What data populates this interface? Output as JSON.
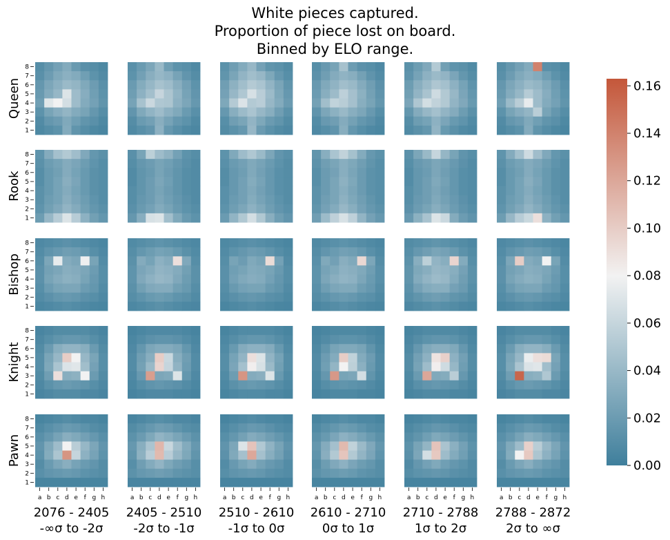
{
  "title": {
    "line1": "White pieces captured.",
    "line2": "Proportion of piece lost on board.",
    "line3": "Binned by ELO range."
  },
  "colors": {
    "low": "#3f7f9c",
    "mid": "#f2f2f2",
    "high": "#c4573a"
  },
  "chart_data": {
    "type": "heatmap",
    "rows": [
      "Queen",
      "Rook",
      "Bishop",
      "Knight",
      "Pawn"
    ],
    "columns": [
      {
        "range": "2076 - 2405",
        "sigma": "-∞σ to -2σ"
      },
      {
        "range": "2405 - 2510",
        "sigma": "-2σ to -1σ"
      },
      {
        "range": "2510 - 2610",
        "sigma": "-1σ to 0σ"
      },
      {
        "range": "2610 - 2710",
        "sigma": "0σ to 1σ"
      },
      {
        "range": "2710 - 2788",
        "sigma": "1σ to 2σ"
      },
      {
        "range": "2788 - 2872",
        "sigma": "2σ to ∞σ"
      }
    ],
    "files": [
      "a",
      "b",
      "c",
      "d",
      "e",
      "f",
      "g",
      "h"
    ],
    "ranks": [
      "8",
      "7",
      "6",
      "5",
      "4",
      "3",
      "2",
      "1"
    ],
    "colorbar": {
      "min": 0.0,
      "max": 0.163,
      "ticks": [
        "0.00",
        "0.02",
        "0.04",
        "0.06",
        "0.08",
        "0.10",
        "0.12",
        "0.14",
        "0.16"
      ]
    },
    "base_patterns": {
      "Queen": [
        [
          0.012,
          0.02,
          0.028,
          0.036,
          0.022,
          0.014,
          0.012,
          0.008
        ],
        [
          0.014,
          0.024,
          0.034,
          0.04,
          0.036,
          0.026,
          0.016,
          0.01
        ],
        [
          0.02,
          0.032,
          0.04,
          0.048,
          0.044,
          0.034,
          0.024,
          0.014
        ],
        [
          0.022,
          0.036,
          0.046,
          0.062,
          0.05,
          0.038,
          0.026,
          0.016
        ],
        [
          0.026,
          0.048,
          0.064,
          0.06,
          0.05,
          0.036,
          0.028,
          0.018
        ],
        [
          0.016,
          0.03,
          0.038,
          0.044,
          0.036,
          0.03,
          0.02,
          0.012
        ],
        [
          0.01,
          0.02,
          0.024,
          0.034,
          0.026,
          0.018,
          0.014,
          0.008
        ],
        [
          0.008,
          0.012,
          0.016,
          0.036,
          0.018,
          0.012,
          0.008,
          0.006
        ]
      ],
      "Rook": [
        [
          0.014,
          0.03,
          0.044,
          0.05,
          0.042,
          0.028,
          0.016,
          0.012
        ],
        [
          0.012,
          0.02,
          0.024,
          0.03,
          0.026,
          0.02,
          0.014,
          0.01
        ],
        [
          0.01,
          0.018,
          0.022,
          0.03,
          0.024,
          0.018,
          0.012,
          0.01
        ],
        [
          0.01,
          0.018,
          0.024,
          0.032,
          0.026,
          0.018,
          0.012,
          0.01
        ],
        [
          0.012,
          0.018,
          0.024,
          0.03,
          0.024,
          0.018,
          0.012,
          0.01
        ],
        [
          0.012,
          0.02,
          0.024,
          0.032,
          0.026,
          0.02,
          0.014,
          0.01
        ],
        [
          0.014,
          0.022,
          0.028,
          0.036,
          0.03,
          0.022,
          0.016,
          0.012
        ],
        [
          0.02,
          0.038,
          0.052,
          0.06,
          0.052,
          0.034,
          0.022,
          0.016
        ]
      ],
      "Bishop": [
        [
          0.008,
          0.01,
          0.012,
          0.014,
          0.012,
          0.01,
          0.008,
          0.006
        ],
        [
          0.01,
          0.016,
          0.02,
          0.024,
          0.022,
          0.018,
          0.012,
          0.008
        ],
        [
          0.012,
          0.03,
          0.024,
          0.034,
          0.03,
          0.026,
          0.028,
          0.01
        ],
        [
          0.014,
          0.026,
          0.03,
          0.036,
          0.034,
          0.03,
          0.022,
          0.012
        ],
        [
          0.014,
          0.028,
          0.034,
          0.038,
          0.036,
          0.028,
          0.02,
          0.012
        ],
        [
          0.012,
          0.022,
          0.028,
          0.03,
          0.03,
          0.022,
          0.018,
          0.01
        ],
        [
          0.01,
          0.014,
          0.018,
          0.02,
          0.018,
          0.014,
          0.012,
          0.008
        ],
        [
          0.006,
          0.008,
          0.01,
          0.012,
          0.01,
          0.008,
          0.006,
          0.005
        ]
      ],
      "Knight": [
        [
          0.004,
          0.006,
          0.008,
          0.008,
          0.008,
          0.008,
          0.006,
          0.004
        ],
        [
          0.006,
          0.01,
          0.014,
          0.016,
          0.016,
          0.014,
          0.01,
          0.006
        ],
        [
          0.008,
          0.018,
          0.03,
          0.034,
          0.034,
          0.03,
          0.018,
          0.008
        ],
        [
          0.01,
          0.024,
          0.036,
          0.07,
          0.068,
          0.036,
          0.024,
          0.01
        ],
        [
          0.01,
          0.026,
          0.044,
          0.064,
          0.066,
          0.04,
          0.022,
          0.01
        ],
        [
          0.008,
          0.02,
          0.06,
          0.03,
          0.032,
          0.056,
          0.018,
          0.008
        ],
        [
          0.006,
          0.012,
          0.016,
          0.018,
          0.016,
          0.014,
          0.01,
          0.006
        ],
        [
          0.004,
          0.006,
          0.008,
          0.008,
          0.008,
          0.006,
          0.006,
          0.004
        ]
      ],
      "Pawn": [
        [
          0.004,
          0.006,
          0.008,
          0.01,
          0.008,
          0.006,
          0.006,
          0.004
        ],
        [
          0.008,
          0.012,
          0.016,
          0.02,
          0.018,
          0.014,
          0.01,
          0.008
        ],
        [
          0.012,
          0.018,
          0.026,
          0.034,
          0.03,
          0.024,
          0.018,
          0.012
        ],
        [
          0.016,
          0.03,
          0.044,
          0.08,
          0.056,
          0.04,
          0.028,
          0.016
        ],
        [
          0.014,
          0.032,
          0.05,
          0.11,
          0.05,
          0.036,
          0.026,
          0.014
        ],
        [
          0.01,
          0.02,
          0.028,
          0.034,
          0.026,
          0.02,
          0.016,
          0.01
        ],
        [
          0.012,
          0.016,
          0.018,
          0.02,
          0.018,
          0.014,
          0.012,
          0.01
        ],
        [
          0.004,
          0.004,
          0.004,
          0.004,
          0.004,
          0.004,
          0.004,
          0.004
        ]
      ]
    },
    "highlights": {
      "Queen": [
        [
          {
            "r": 3,
            "c": 3,
            "v": 0.07
          },
          {
            "r": 4,
            "c": 1,
            "v": 0.072
          },
          {
            "r": 4,
            "c": 2,
            "v": 0.08
          },
          {
            "r": 4,
            "c": 3,
            "v": 0.066
          }
        ],
        [
          {
            "r": 0,
            "c": 3,
            "v": 0.04
          },
          {
            "r": 4,
            "c": 3,
            "v": 0.05
          }
        ],
        [
          {
            "r": 4,
            "c": 3,
            "v": 0.052
          }
        ],
        [
          {
            "r": 0,
            "c": 3,
            "v": 0.046
          },
          {
            "r": 4,
            "c": 3,
            "v": 0.054
          }
        ],
        [
          {
            "r": 0,
            "c": 3,
            "v": 0.052
          },
          {
            "r": 4,
            "c": 3,
            "v": 0.058
          }
        ],
        [
          {
            "r": 0,
            "c": 4,
            "v": 0.14
          },
          {
            "r": 4,
            "c": 3,
            "v": 0.075
          },
          {
            "r": 5,
            "c": 4,
            "v": 0.055
          }
        ]
      ],
      "Rook": [
        [
          {
            "r": 7,
            "c": 3,
            "v": 0.07
          }
        ],
        [
          {
            "r": 0,
            "c": 2,
            "v": 0.056
          },
          {
            "r": 7,
            "c": 2,
            "v": 0.068
          },
          {
            "r": 7,
            "c": 3,
            "v": 0.07
          }
        ],
        [
          {
            "r": 0,
            "c": 3,
            "v": 0.05
          },
          {
            "r": 7,
            "c": 3,
            "v": 0.066
          }
        ],
        [
          {
            "r": 0,
            "c": 3,
            "v": 0.058
          },
          {
            "r": 7,
            "c": 3,
            "v": 0.068
          }
        ],
        [
          {
            "r": 0,
            "c": 3,
            "v": 0.06
          },
          {
            "r": 7,
            "c": 3,
            "v": 0.07
          },
          {
            "r": 7,
            "c": 4,
            "v": 0.062
          }
        ],
        [
          {
            "r": 0,
            "c": 3,
            "v": 0.064
          },
          {
            "r": 7,
            "c": 4,
            "v": 0.09
          }
        ]
      ],
      "Bishop": [
        [
          {
            "r": 2,
            "c": 2,
            "v": 0.075
          },
          {
            "r": 2,
            "c": 5,
            "v": 0.078
          }
        ],
        [
          {
            "r": 2,
            "c": 5,
            "v": 0.09
          }
        ],
        [
          {
            "r": 2,
            "c": 5,
            "v": 0.092
          }
        ],
        [
          {
            "r": 2,
            "c": 5,
            "v": 0.094
          }
        ],
        [
          {
            "r": 2,
            "c": 5,
            "v": 0.096
          },
          {
            "r": 2,
            "c": 2,
            "v": 0.056
          }
        ],
        [
          {
            "r": 2,
            "c": 2,
            "v": 0.1
          },
          {
            "r": 2,
            "c": 5,
            "v": 0.08
          }
        ]
      ],
      "Knight": [
        [
          {
            "r": 3,
            "c": 3,
            "v": 0.1
          },
          {
            "r": 3,
            "c": 4,
            "v": 0.08
          },
          {
            "r": 5,
            "c": 2,
            "v": 0.09
          },
          {
            "r": 5,
            "c": 5,
            "v": 0.08
          }
        ],
        [
          {
            "r": 3,
            "c": 3,
            "v": 0.1
          },
          {
            "r": 4,
            "c": 3,
            "v": 0.096
          },
          {
            "r": 5,
            "c": 2,
            "v": 0.125
          },
          {
            "r": 5,
            "c": 5,
            "v": 0.07
          }
        ],
        [
          {
            "r": 3,
            "c": 3,
            "v": 0.09
          },
          {
            "r": 4,
            "c": 3,
            "v": 0.082
          },
          {
            "r": 5,
            "c": 2,
            "v": 0.13
          },
          {
            "r": 5,
            "c": 5,
            "v": 0.07
          }
        ],
        [
          {
            "r": 3,
            "c": 3,
            "v": 0.1
          },
          {
            "r": 4,
            "c": 3,
            "v": 0.08
          },
          {
            "r": 5,
            "c": 2,
            "v": 0.128
          },
          {
            "r": 5,
            "c": 5,
            "v": 0.066
          }
        ],
        [
          {
            "r": 3,
            "c": 3,
            "v": 0.088
          },
          {
            "r": 3,
            "c": 4,
            "v": 0.098
          },
          {
            "r": 4,
            "c": 3,
            "v": 0.082
          },
          {
            "r": 5,
            "c": 2,
            "v": 0.12
          }
        ],
        [
          {
            "r": 3,
            "c": 4,
            "v": 0.09
          },
          {
            "r": 3,
            "c": 5,
            "v": 0.092
          },
          {
            "r": 5,
            "c": 2,
            "v": 0.155
          },
          {
            "r": 5,
            "c": 5,
            "v": 0.05
          }
        ]
      ],
      "Pawn": [
        [
          {
            "r": 3,
            "c": 3,
            "v": 0.08
          },
          {
            "r": 4,
            "c": 3,
            "v": 0.13
          },
          {
            "r": 4,
            "c": 4,
            "v": 0.06
          }
        ],
        [
          {
            "r": 3,
            "c": 3,
            "v": 0.112
          },
          {
            "r": 4,
            "c": 3,
            "v": 0.11
          }
        ],
        [
          {
            "r": 3,
            "c": 3,
            "v": 0.105
          },
          {
            "r": 3,
            "c": 2,
            "v": 0.07
          },
          {
            "r": 4,
            "c": 3,
            "v": 0.12
          }
        ],
        [
          {
            "r": 3,
            "c": 3,
            "v": 0.11
          },
          {
            "r": 4,
            "c": 3,
            "v": 0.104
          }
        ],
        [
          {
            "r": 3,
            "c": 3,
            "v": 0.105
          },
          {
            "r": 4,
            "c": 3,
            "v": 0.102
          },
          {
            "r": 4,
            "c": 2,
            "v": 0.066
          }
        ],
        [
          {
            "r": 3,
            "c": 3,
            "v": 0.098
          },
          {
            "r": 4,
            "c": 2,
            "v": 0.08
          },
          {
            "r": 4,
            "c": 3,
            "v": 0.102
          }
        ]
      ]
    }
  }
}
